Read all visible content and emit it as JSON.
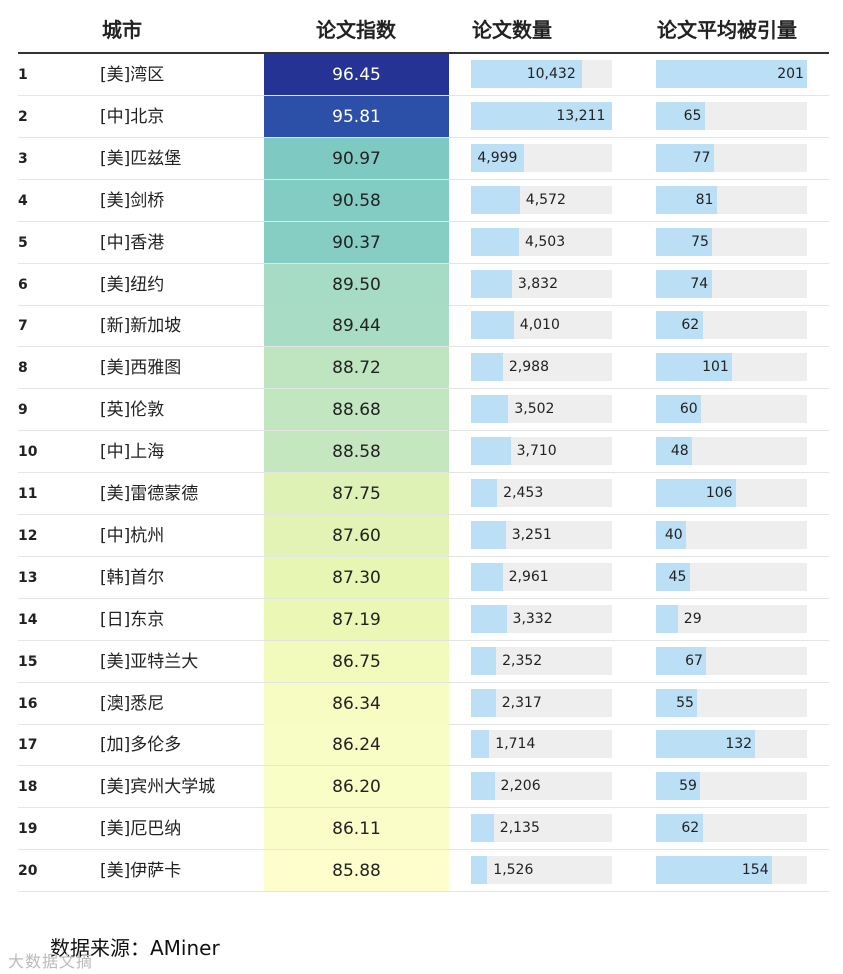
{
  "headers": {
    "city": "城市",
    "index": "论文指数",
    "count": "论文数量",
    "citation": "论文平均被引量"
  },
  "footer": {
    "source": "数据来源：AMiner",
    "watermark": "大数据文摘"
  },
  "chart_data": {
    "type": "table",
    "columns": [
      "",
      "城市",
      "论文指数",
      "论文数量",
      "论文平均被引量"
    ],
    "max_count": 13211,
    "max_citation": 201,
    "index_colors": {
      "high": "#26359c",
      "mid": "#7ecbc4",
      "low": "#ffffcc"
    },
    "rows": [
      {
        "rank": "1",
        "city": "[美]湾区",
        "index": "96.45",
        "count": 10432,
        "count_label": "10,432",
        "citation": 201,
        "citation_label": "201",
        "color": "#253494"
      },
      {
        "rank": "2",
        "city": "[中]北京",
        "index": "95.81",
        "count": 13211,
        "count_label": "13,211",
        "citation": 65,
        "citation_label": "65",
        "color": "#2c4fa7"
      },
      {
        "rank": "3",
        "city": "[美]匹兹堡",
        "index": "90.97",
        "count": 4999,
        "count_label": "4,999",
        "citation": 77,
        "citation_label": "77",
        "color": "#7ecac2"
      },
      {
        "rank": "4",
        "city": "[美]剑桥",
        "index": "90.58",
        "count": 4572,
        "count_label": "4,572",
        "citation": 81,
        "citation_label": "81",
        "color": "#82ccc3"
      },
      {
        "rank": "5",
        "city": "[中]香港",
        "index": "90.37",
        "count": 4503,
        "count_label": "4,503",
        "citation": 75,
        "citation_label": "75",
        "color": "#86cec3"
      },
      {
        "rank": "6",
        "city": "[美]纽约",
        "index": "89.50",
        "count": 3832,
        "count_label": "3,832",
        "citation": 74,
        "citation_label": "74",
        "color": "#a6dbc5"
      },
      {
        "rank": "7",
        "city": "[新]新加坡",
        "index": "89.44",
        "count": 4010,
        "count_label": "4,010",
        "citation": 62,
        "citation_label": "62",
        "color": "#a9dcc5"
      },
      {
        "rank": "8",
        "city": "[美]西雅图",
        "index": "88.72",
        "count": 2988,
        "count_label": "2,988",
        "citation": 101,
        "citation_label": "101",
        "color": "#bfe5c0"
      },
      {
        "rank": "9",
        "city": "[英]伦敦",
        "index": "88.68",
        "count": 3502,
        "count_label": "3,502",
        "citation": 60,
        "citation_label": "60",
        "color": "#c1e6c0"
      },
      {
        "rank": "10",
        "city": "[中]上海",
        "index": "88.58",
        "count": 3710,
        "count_label": "3,710",
        "citation": 48,
        "citation_label": "48",
        "color": "#c4e7bf"
      },
      {
        "rank": "11",
        "city": "[美]雷德蒙德",
        "index": "87.75",
        "count": 2453,
        "count_label": "2,453",
        "citation": 106,
        "citation_label": "106",
        "color": "#def2b6"
      },
      {
        "rank": "12",
        "city": "[中]杭州",
        "index": "87.60",
        "count": 3251,
        "count_label": "3,251",
        "citation": 40,
        "citation_label": "40",
        "color": "#e2f3b5"
      },
      {
        "rank": "13",
        "city": "[韩]首尔",
        "index": "87.30",
        "count": 2961,
        "count_label": "2,961",
        "citation": 45,
        "citation_label": "45",
        "color": "#e8f6b4"
      },
      {
        "rank": "14",
        "city": "[日]东京",
        "index": "87.19",
        "count": 3332,
        "count_label": "3,332",
        "citation": 29,
        "citation_label": "29",
        "color": "#ebf7b5"
      },
      {
        "rank": "15",
        "city": "[美]亚特兰大",
        "index": "86.75",
        "count": 2352,
        "count_label": "2,352",
        "citation": 67,
        "citation_label": "67",
        "color": "#f2fabc"
      },
      {
        "rank": "16",
        "city": "[澳]悉尼",
        "index": "86.34",
        "count": 2317,
        "count_label": "2,317",
        "citation": 55,
        "citation_label": "55",
        "color": "#f7fcc3"
      },
      {
        "rank": "17",
        "city": "[加]多伦多",
        "index": "86.24",
        "count": 1714,
        "count_label": "1,714",
        "citation": 132,
        "citation_label": "132",
        "color": "#f8fcc5"
      },
      {
        "rank": "18",
        "city": "[美]宾州大学城",
        "index": "86.20",
        "count": 2206,
        "count_label": "2,206",
        "citation": 59,
        "citation_label": "59",
        "color": "#f9fdc6"
      },
      {
        "rank": "19",
        "city": "[美]厄巴纳",
        "index": "86.11",
        "count": 2135,
        "count_label": "2,135",
        "citation": 62,
        "citation_label": "62",
        "color": "#fafdc8"
      },
      {
        "rank": "20",
        "city": "[美]伊萨卡",
        "index": "85.88",
        "count": 1526,
        "count_label": "1,526",
        "citation": 154,
        "citation_label": "154",
        "color": "#fdfecc"
      }
    ]
  }
}
